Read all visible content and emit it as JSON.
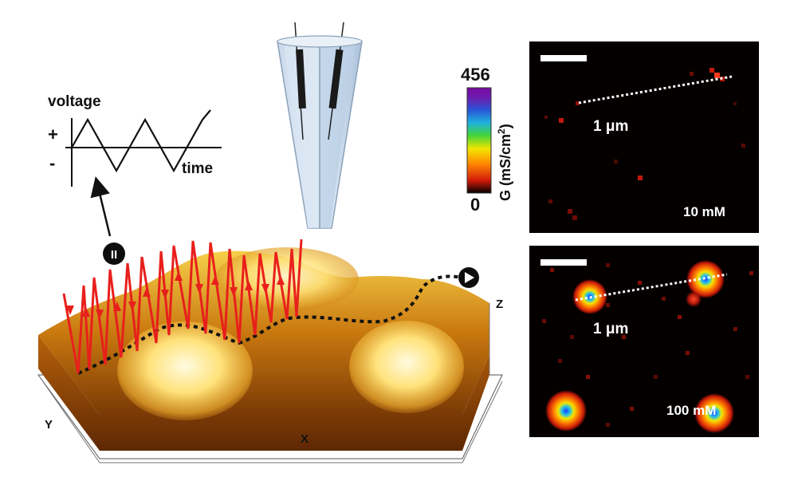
{
  "voltage_plot": {
    "title": "voltage",
    "plus": "+",
    "minus": "-",
    "axis_label": "time"
  },
  "stage_marker": "II",
  "topography_axes": {
    "x": "X",
    "y": "Y",
    "z": "Z"
  },
  "colorbar": {
    "max": "456",
    "min": "0",
    "label": "G (mS/cm",
    "label_sup": "2",
    "label_close": ")"
  },
  "map_top": {
    "scale_label": "1 μm",
    "concentration": "10 mM"
  },
  "map_bottom": {
    "scale_label": "1 μm",
    "concentration": "100 mM"
  },
  "colors": {
    "scan_path": "#e8201c",
    "map_background": "#050000",
    "colorbar": [
      "#000000",
      "#d21b0a",
      "#ff8a00",
      "#f2e600",
      "#3fd43a",
      "#1fb0e0",
      "#2a55d6",
      "#6a1fb0",
      "#7a0aa0"
    ]
  }
}
